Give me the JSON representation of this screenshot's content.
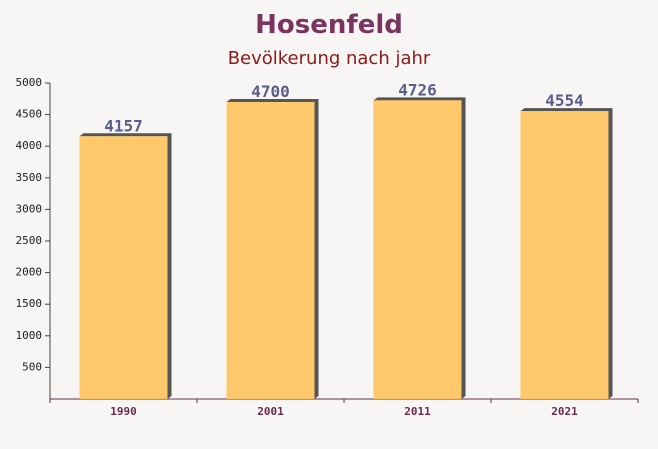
{
  "chart_data": {
    "type": "bar",
    "title": "Hosenfeld",
    "subtitle": "Bevölkerung nach jahr",
    "categories": [
      "1990",
      "2001",
      "2011",
      "2021"
    ],
    "values": [
      4157,
      4700,
      4726,
      4554
    ],
    "color": "#ffc45c",
    "ylim": [
      0,
      5000
    ],
    "yticks": [
      500,
      1000,
      1500,
      2000,
      2500,
      3000,
      3500,
      4000,
      4500,
      5000
    ]
  }
}
